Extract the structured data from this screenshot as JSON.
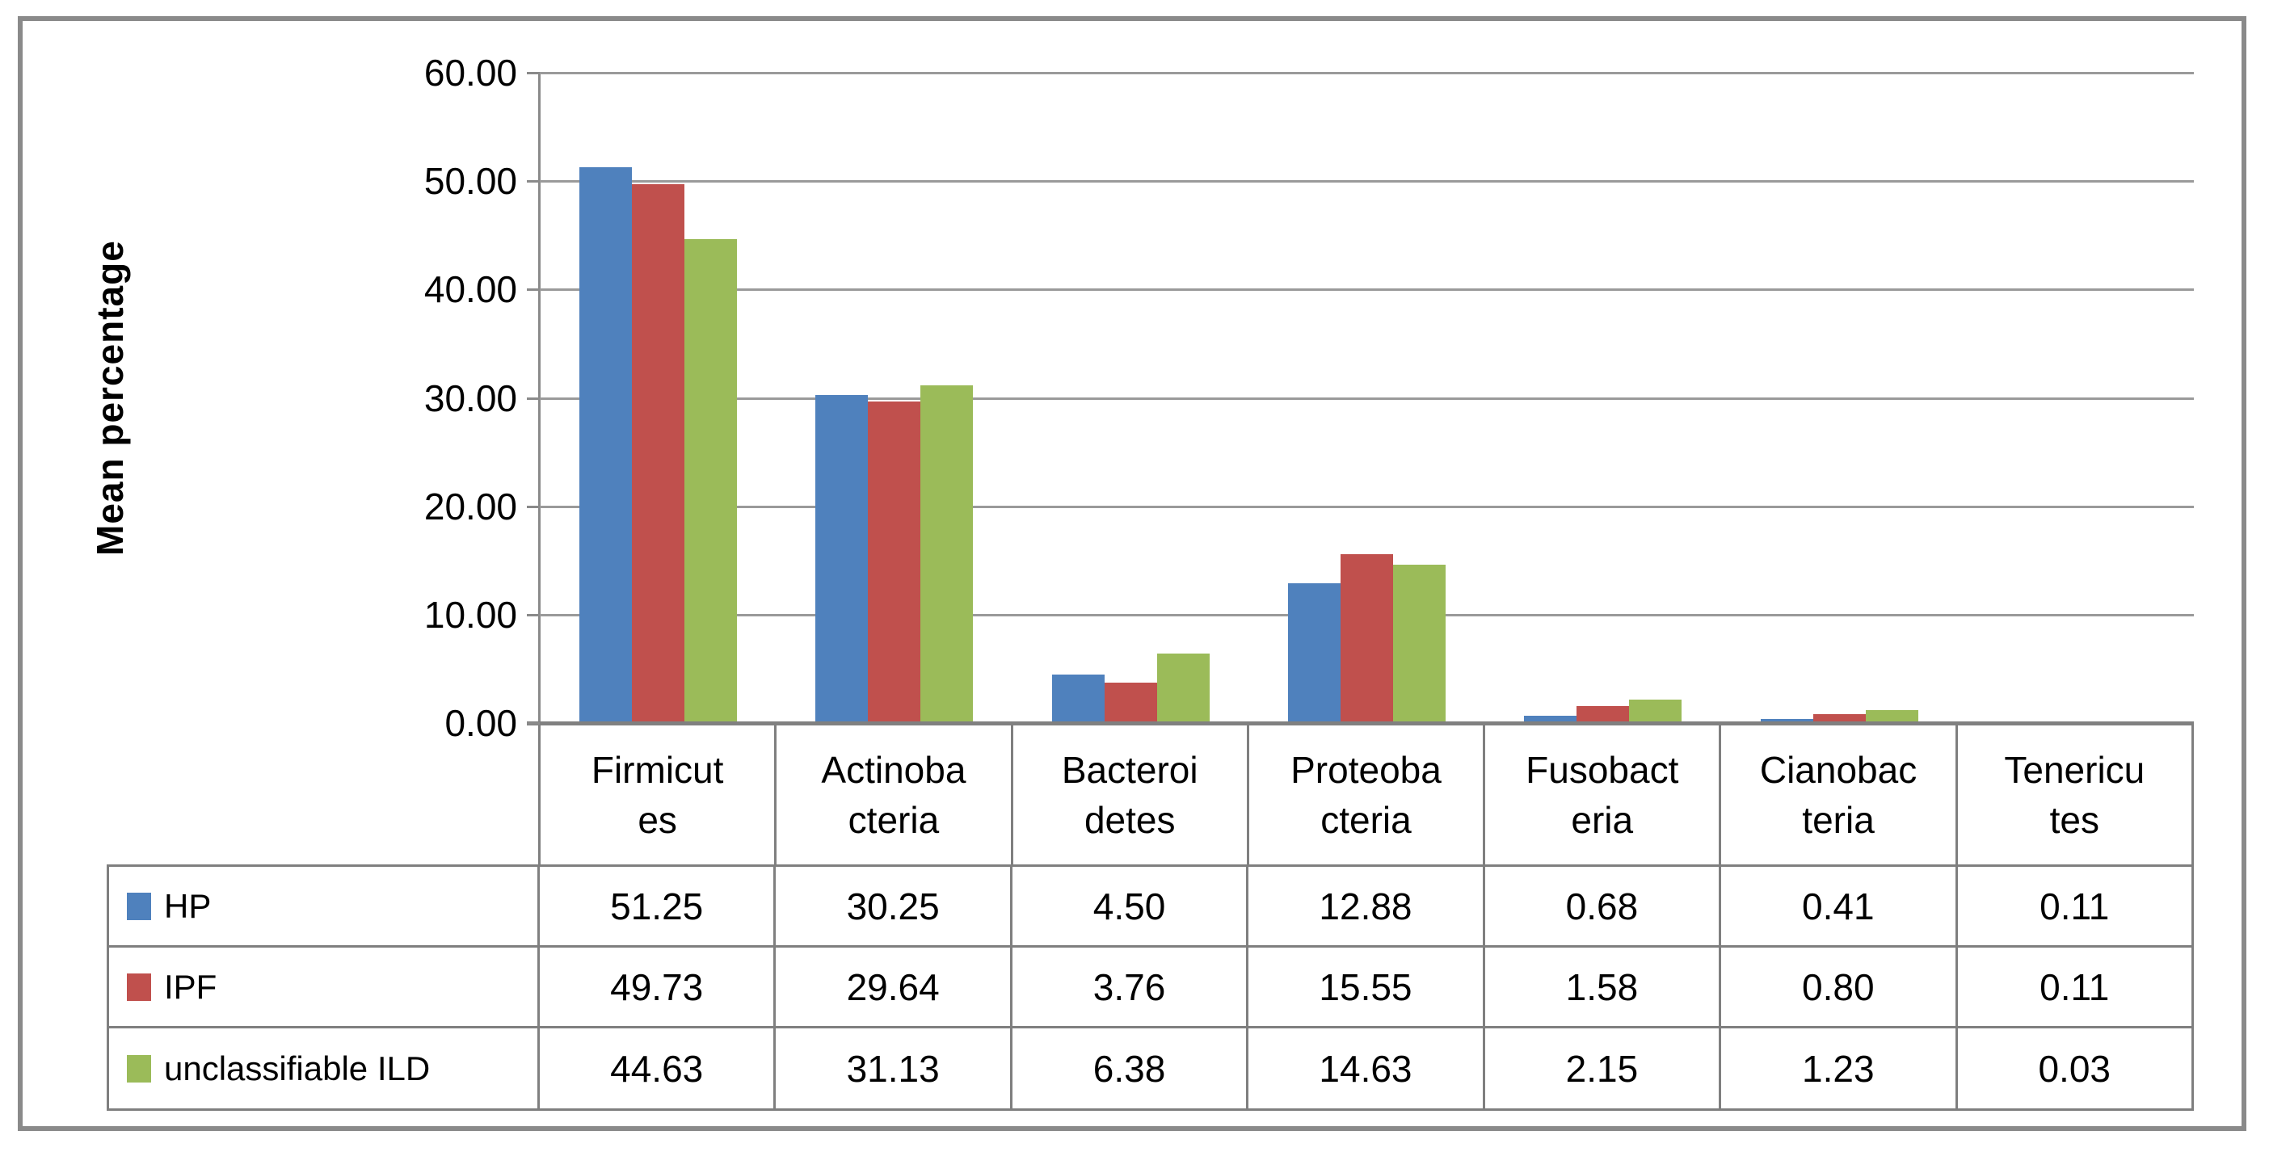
{
  "chart_data": {
    "type": "bar",
    "title": "",
    "xlabel": "",
    "ylabel": "Mean percentage",
    "grid": true,
    "legend_position": "table-left",
    "categories": [
      "Firmicutes",
      "Actinobacteria",
      "Bacteroidetes",
      "Proteobacteria",
      "Fusobacteria",
      "Cianobacteria",
      "Tenericutes"
    ],
    "categories_wrapped": [
      [
        "Firmicut",
        "es"
      ],
      [
        "Actinoba",
        "cteria"
      ],
      [
        "Bacteroi",
        "detes"
      ],
      [
        "Proteoba",
        "cteria"
      ],
      [
        "Fusobact",
        "eria"
      ],
      [
        "Cianobac",
        "teria"
      ],
      [
        "Tenericu",
        "tes"
      ]
    ],
    "y_axis": {
      "min": 0,
      "max": 60,
      "step": 10,
      "tick_labels": [
        "60.00",
        "50.00",
        "40.00",
        "30.00",
        "20.00",
        "10.00",
        "0.00"
      ]
    },
    "series": [
      {
        "name": "HP",
        "color": "#4F81BD",
        "values": [
          51.25,
          30.25,
          4.5,
          12.88,
          0.68,
          0.41,
          0.11
        ],
        "display": [
          "51.25",
          "30.25",
          "4.50",
          "12.88",
          "0.68",
          "0.41",
          "0.11"
        ]
      },
      {
        "name": "IPF",
        "color": "#C0504D",
        "values": [
          49.73,
          29.64,
          3.76,
          15.55,
          1.58,
          0.8,
          0.11
        ],
        "display": [
          "49.73",
          "29.64",
          "3.76",
          "15.55",
          "1.58",
          "0.80",
          "0.11"
        ]
      },
      {
        "name": "unclassifiable ILD",
        "color": "#9BBB59",
        "values": [
          44.63,
          31.13,
          6.38,
          14.63,
          2.15,
          1.23,
          0.03
        ],
        "display": [
          "44.63",
          "31.13",
          "6.38",
          "14.63",
          "2.15",
          "1.23",
          "0.03"
        ]
      }
    ],
    "style": {
      "gridline_color": "#9a9a9a",
      "axis_color": "#808080",
      "border_color": "#7f7f7f",
      "frame_color": "#8a8a8a"
    }
  }
}
